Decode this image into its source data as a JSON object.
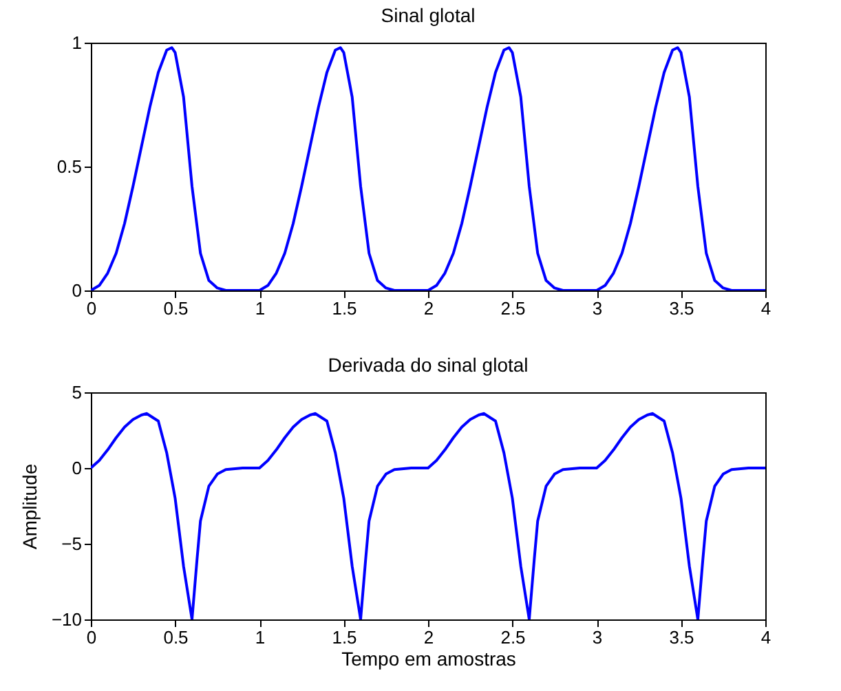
{
  "chart_data": [
    {
      "type": "line",
      "title": "Sinal glotal",
      "xlim": [
        0,
        4
      ],
      "xticks": [
        0,
        0.5,
        1,
        1.5,
        2,
        2.5,
        3,
        3.5,
        4
      ],
      "ylim": [
        0,
        1
      ],
      "yticks": [
        0,
        0.5,
        1
      ],
      "grid": false,
      "marker": "none",
      "line_style": "solid",
      "x": [
        0,
        0.05,
        0.1,
        0.15,
        0.2,
        0.25,
        0.3,
        0.35,
        0.4,
        0.45,
        0.48,
        0.5,
        0.55,
        0.6,
        0.65,
        0.7,
        0.75,
        0.8,
        0.9,
        1,
        1.05,
        1.1,
        1.15,
        1.2,
        1.25,
        1.3,
        1.35,
        1.4,
        1.45,
        1.48,
        1.5,
        1.55,
        1.6,
        1.65,
        1.7,
        1.75,
        1.8,
        1.9,
        2,
        2.05,
        2.1,
        2.15,
        2.2,
        2.25,
        2.3,
        2.35,
        2.4,
        2.45,
        2.48,
        2.5,
        2.55,
        2.6,
        2.65,
        2.7,
        2.75,
        2.8,
        2.9,
        3,
        3.05,
        3.1,
        3.15,
        3.2,
        3.25,
        3.3,
        3.35,
        3.4,
        3.45,
        3.48,
        3.5,
        3.55,
        3.6,
        3.65,
        3.7,
        3.75,
        3.8,
        3.9,
        4
      ],
      "series": [
        {
          "color": "#0000ff",
          "values": [
            0,
            0.02,
            0.07,
            0.15,
            0.27,
            0.42,
            0.58,
            0.74,
            0.88,
            0.97,
            0.98,
            0.96,
            0.78,
            0.42,
            0.15,
            0.04,
            0.01,
            0,
            0,
            0,
            0.02,
            0.07,
            0.15,
            0.27,
            0.42,
            0.58,
            0.74,
            0.88,
            0.97,
            0.98,
            0.96,
            0.78,
            0.42,
            0.15,
            0.04,
            0.01,
            0,
            0,
            0,
            0.02,
            0.07,
            0.15,
            0.27,
            0.42,
            0.58,
            0.74,
            0.88,
            0.97,
            0.98,
            0.96,
            0.78,
            0.42,
            0.15,
            0.04,
            0.01,
            0,
            0,
            0,
            0.02,
            0.07,
            0.15,
            0.27,
            0.42,
            0.58,
            0.74,
            0.88,
            0.97,
            0.98,
            0.96,
            0.78,
            0.42,
            0.15,
            0.04,
            0.01,
            0,
            0,
            0
          ]
        }
      ]
    },
    {
      "type": "line",
      "title": "Derivada do sinal glotal",
      "xlabel": "Tempo em amostras",
      "ylabel": "Amplitude",
      "xlim": [
        0,
        4
      ],
      "xticks": [
        0,
        0.5,
        1,
        1.5,
        2,
        2.5,
        3,
        3.5,
        4
      ],
      "ylim": [
        -10,
        5
      ],
      "yticks": [
        {
          "value": -10,
          "label": "−10"
        },
        {
          "value": -5,
          "label": "−5"
        },
        0,
        5
      ],
      "grid": false,
      "marker": "none",
      "line_style": "solid",
      "x": [
        0,
        0.05,
        0.1,
        0.15,
        0.2,
        0.25,
        0.3,
        0.33,
        0.4,
        0.45,
        0.5,
        0.55,
        0.6,
        0.63,
        0.65,
        0.7,
        0.75,
        0.8,
        0.9,
        1,
        1.05,
        1.1,
        1.15,
        1.2,
        1.25,
        1.3,
        1.33,
        1.4,
        1.45,
        1.5,
        1.55,
        1.6,
        1.63,
        1.65,
        1.7,
        1.75,
        1.8,
        1.9,
        2,
        2.05,
        2.1,
        2.15,
        2.2,
        2.25,
        2.3,
        2.33,
        2.4,
        2.45,
        2.5,
        2.55,
        2.6,
        2.63,
        2.65,
        2.7,
        2.75,
        2.8,
        2.9,
        3,
        3.05,
        3.1,
        3.15,
        3.2,
        3.25,
        3.3,
        3.33,
        3.4,
        3.45,
        3.5,
        3.55,
        3.6,
        3.63,
        3.65,
        3.7,
        3.75,
        3.8,
        3.9,
        4
      ],
      "series": [
        {
          "color": "#0000ff",
          "values": [
            0,
            0.5,
            1.2,
            2,
            2.7,
            3.2,
            3.5,
            3.6,
            3.1,
            1,
            -2,
            -6.5,
            -10,
            -6,
            -3.5,
            -1.2,
            -0.4,
            -0.1,
            0,
            0,
            0.5,
            1.2,
            2,
            2.7,
            3.2,
            3.5,
            3.6,
            3.1,
            1,
            -2,
            -6.5,
            -10,
            -6,
            -3.5,
            -1.2,
            -0.4,
            -0.1,
            0,
            0,
            0.5,
            1.2,
            2,
            2.7,
            3.2,
            3.5,
            3.6,
            3.1,
            1,
            -2,
            -6.5,
            -10,
            -6,
            -3.5,
            -1.2,
            -0.4,
            -0.1,
            0,
            0,
            0.5,
            1.2,
            2,
            2.7,
            3.2,
            3.5,
            3.6,
            3.1,
            1,
            -2,
            -6.5,
            -10,
            -6,
            -3.5,
            -1.2,
            -0.4,
            -0.1,
            0,
            0
          ]
        }
      ]
    }
  ]
}
